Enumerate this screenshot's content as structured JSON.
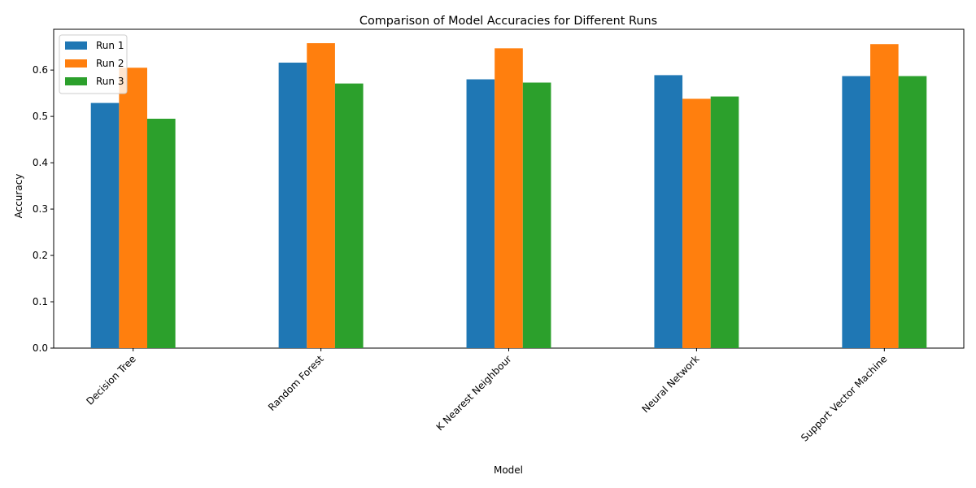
{
  "chart_data": {
    "type": "bar",
    "title": "Comparison of Model Accuracies for Different Runs",
    "xlabel": "Model",
    "ylabel": "Accuracy",
    "categories": [
      "Decision Tree",
      "Random Forest",
      "K Nearest Neighbour",
      "Neural Network",
      "Support Vector Machine"
    ],
    "series": [
      {
        "name": "Run 1",
        "color": "#1f77b4",
        "values": [
          0.529,
          0.616,
          0.58,
          0.589,
          0.587
        ]
      },
      {
        "name": "Run 2",
        "color": "#ff7f0e",
        "values": [
          0.605,
          0.658,
          0.647,
          0.538,
          0.656
        ]
      },
      {
        "name": "Run 3",
        "color": "#2ca02c",
        "values": [
          0.495,
          0.571,
          0.573,
          0.543,
          0.587
        ]
      }
    ],
    "ylim": [
      0,
      0.688
    ],
    "yticks": [
      "0.0",
      "0.1",
      "0.2",
      "0.3",
      "0.4",
      "0.5",
      "0.6"
    ],
    "grid": false,
    "legend_position": "top-left"
  }
}
